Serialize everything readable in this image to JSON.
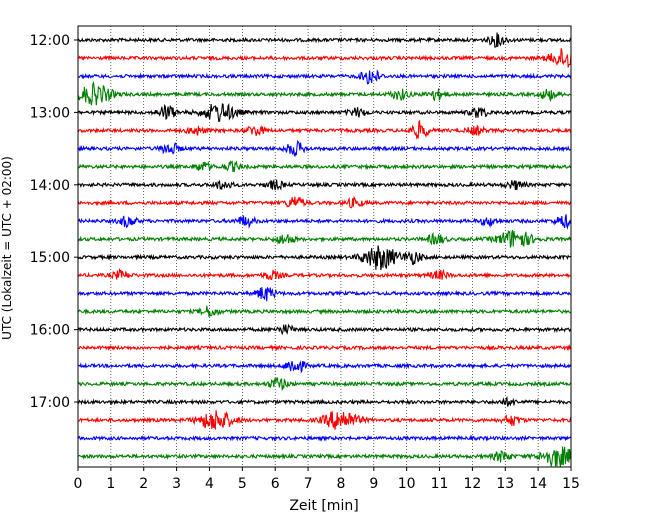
{
  "chart_data": {
    "type": "line",
    "title": "",
    "xlabel": "Zeit  [min]",
    "ylabel": "UTC (Lokalzeit = UTC + 02:00)",
    "xlim": [
      0,
      15
    ],
    "x_ticks": [
      "0",
      "1",
      "2",
      "3",
      "4",
      "5",
      "6",
      "7",
      "8",
      "9",
      "10",
      "11",
      "12",
      "13",
      "14",
      "15"
    ],
    "y_ticks": [
      "12:00",
      "13:00",
      "14:00",
      "15:00",
      "16:00",
      "17:00"
    ],
    "grid": "vertical-dotted",
    "trace_interval_min": 15,
    "trace_colors": [
      "#000000",
      "#ff0000",
      "#0000ff",
      "#008000"
    ],
    "series": [
      {
        "start": "12:00",
        "color": "#000000",
        "events": [
          {
            "t": 12.75,
            "amp": 6
          }
        ]
      },
      {
        "start": "12:15",
        "color": "#ff0000",
        "events": [
          {
            "t": 14.9,
            "amp": 10
          }
        ]
      },
      {
        "start": "12:30",
        "color": "#0000ff",
        "events": [
          {
            "t": 8.9,
            "amp": 8
          }
        ]
      },
      {
        "start": "12:45",
        "color": "#008000",
        "events": [
          {
            "t": 0.5,
            "amp": 10
          },
          {
            "t": 9.8,
            "amp": 5
          },
          {
            "t": 10.9,
            "amp": 5
          },
          {
            "t": 14.3,
            "amp": 5
          }
        ]
      },
      {
        "start": "13:00",
        "color": "#000000",
        "events": [
          {
            "t": 2.7,
            "amp": 7
          },
          {
            "t": 4.3,
            "amp": 9
          },
          {
            "t": 8.5,
            "amp": 4
          },
          {
            "t": 12.2,
            "amp": 5
          }
        ]
      },
      {
        "start": "13:15",
        "color": "#ff0000",
        "events": [
          {
            "t": 3.6,
            "amp": 4
          },
          {
            "t": 5.4,
            "amp": 5
          },
          {
            "t": 10.4,
            "amp": 8
          },
          {
            "t": 12.1,
            "amp": 4
          }
        ]
      },
      {
        "start": "13:30",
        "color": "#0000ff",
        "events": [
          {
            "t": 2.8,
            "amp": 6
          },
          {
            "t": 6.6,
            "amp": 7
          }
        ]
      },
      {
        "start": "13:45",
        "color": "#008000",
        "events": [
          {
            "t": 3.8,
            "amp": 4
          },
          {
            "t": 4.7,
            "amp": 4
          }
        ]
      },
      {
        "start": "14:00",
        "color": "#000000",
        "events": [
          {
            "t": 4.4,
            "amp": 4
          },
          {
            "t": 6.0,
            "amp": 4
          },
          {
            "t": 13.3,
            "amp": 4
          }
        ]
      },
      {
        "start": "14:15",
        "color": "#ff0000",
        "events": [
          {
            "t": 6.6,
            "amp": 6
          },
          {
            "t": 8.4,
            "amp": 4
          }
        ]
      },
      {
        "start": "14:30",
        "color": "#0000ff",
        "events": [
          {
            "t": 1.5,
            "amp": 5
          },
          {
            "t": 5.1,
            "amp": 5
          },
          {
            "t": 12.5,
            "amp": 4
          },
          {
            "t": 14.8,
            "amp": 6
          }
        ]
      },
      {
        "start": "14:45",
        "color": "#008000",
        "events": [
          {
            "t": 6.3,
            "amp": 5
          },
          {
            "t": 10.9,
            "amp": 5
          },
          {
            "t": 13.3,
            "amp": 9
          }
        ]
      },
      {
        "start": "15:00",
        "color": "#000000",
        "events": [
          {
            "t": 9.2,
            "amp": 12
          },
          {
            "t": 10.2,
            "amp": 6
          }
        ]
      },
      {
        "start": "15:15",
        "color": "#ff0000",
        "events": [
          {
            "t": 1.3,
            "amp": 4
          },
          {
            "t": 5.9,
            "amp": 4
          },
          {
            "t": 11.0,
            "amp": 4
          }
        ]
      },
      {
        "start": "15:30",
        "color": "#0000ff",
        "events": [
          {
            "t": 5.7,
            "amp": 7
          }
        ]
      },
      {
        "start": "15:45",
        "color": "#008000",
        "events": [
          {
            "t": 4.0,
            "amp": 5
          }
        ]
      },
      {
        "start": "16:00",
        "color": "#000000",
        "events": [
          {
            "t": 6.3,
            "amp": 4
          }
        ]
      },
      {
        "start": "16:15",
        "color": "#ff0000",
        "events": []
      },
      {
        "start": "16:30",
        "color": "#0000ff",
        "events": [
          {
            "t": 6.6,
            "amp": 8
          }
        ]
      },
      {
        "start": "16:45",
        "color": "#008000",
        "events": [
          {
            "t": 6.1,
            "amp": 6
          }
        ]
      },
      {
        "start": "17:00",
        "color": "#000000",
        "events": [
          {
            "t": 13.1,
            "amp": 3
          }
        ]
      },
      {
        "start": "17:15",
        "color": "#ff0000",
        "events": [
          {
            "t": 4.2,
            "amp": 10
          },
          {
            "t": 8.0,
            "amp": 10
          },
          {
            "t": 13.2,
            "amp": 5
          }
        ]
      },
      {
        "start": "17:30",
        "color": "#0000ff",
        "events": []
      },
      {
        "start": "17:45",
        "color": "#008000",
        "events": [
          {
            "t": 12.9,
            "amp": 5
          },
          {
            "t": 14.6,
            "amp": 10
          }
        ]
      }
    ]
  }
}
